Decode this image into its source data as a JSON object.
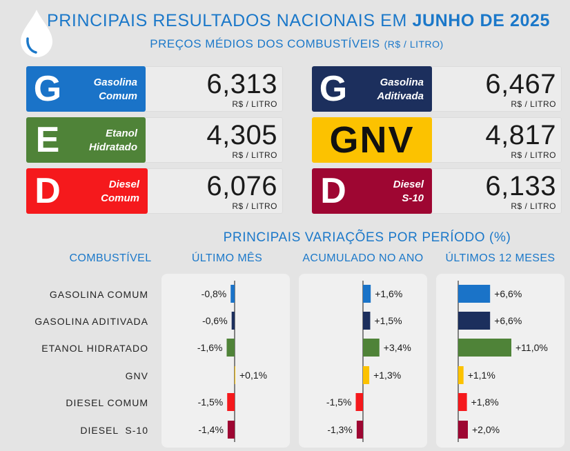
{
  "header": {
    "title_prefix": "PRINCIPAIS  RESULTADOS NACIONAIS  EM",
    "title_highlight": "JUNHO DE 2025",
    "subtitle": "PREÇOS MÉDIOS DOS COMBUSTÍVEIS",
    "subtitle_unit": "(R$ / LITRO)",
    "logo_icon": "drop-icon"
  },
  "price_unit": "R$ / LITRO",
  "fuels": [
    {
      "letter": "G",
      "name": "Gasolina\nComum",
      "price": "6,313",
      "color": "#1a73c8"
    },
    {
      "letter": "G",
      "name": "Gasolina\nAditivada",
      "price": "6,467",
      "color": "#1c2f5d"
    },
    {
      "letter": "E",
      "name": "Etanol\nHidratado",
      "price": "4,305",
      "color": "#4f8338"
    },
    {
      "letter": "GNV",
      "name": "",
      "price": "4,817",
      "color": "#fcc200"
    },
    {
      "letter": "D",
      "name": "Diesel\nComum",
      "price": "6,076",
      "color": "#f5191c"
    },
    {
      "letter": "D",
      "name": "Diesel\nS-10",
      "price": "6,133",
      "color": "#9e0632"
    }
  ],
  "variations": {
    "title": "PRINCIPAIS  VARIAÇÕES POR PERÍODO (%)",
    "category_header": "COMBUSTÍVEL",
    "row_labels": [
      "GASOLINA COMUM",
      "GASOLINA ADITIVADA",
      "ETANOL HIDRATADO",
      "GNV",
      "DIESEL COMUM",
      "DIESEL  S-10"
    ]
  },
  "chart_data": {
    "type": "bar",
    "orientation": "horizontal",
    "categories": [
      "GASOLINA COMUM",
      "GASOLINA ADITIVADA",
      "ETANOL HIDRATADO",
      "GNV",
      "DIESEL COMUM",
      "DIESEL  S-10"
    ],
    "colors": [
      "#1a73c8",
      "#1c2f5d",
      "#4f8338",
      "#fcc200",
      "#f5191c",
      "#9e0632"
    ],
    "series": [
      {
        "name": "ÚLTIMO MÊS",
        "values": [
          -0.8,
          -0.6,
          -1.6,
          0.1,
          -1.5,
          -1.4
        ],
        "labels": [
          "-0,8%",
          "-0,6%",
          "-1,6%",
          "+0,1%",
          "-1,5%",
          "-1,4%"
        ]
      },
      {
        "name": "ACUMULADO NO ANO",
        "values": [
          1.6,
          1.5,
          3.4,
          1.3,
          -1.5,
          -1.3
        ],
        "labels": [
          "+1,6%",
          "+1,5%",
          "+3,4%",
          "+1,3%",
          "-1,5%",
          "-1,3%"
        ]
      },
      {
        "name": "ÚLTIMOS 12 MESES",
        "values": [
          6.6,
          6.6,
          11.0,
          1.1,
          1.8,
          2.0
        ],
        "labels": [
          "+6,6%",
          "+6,6%",
          "+11,0%",
          "+1,1%",
          "+1,8%",
          "+2,0%"
        ]
      }
    ]
  }
}
